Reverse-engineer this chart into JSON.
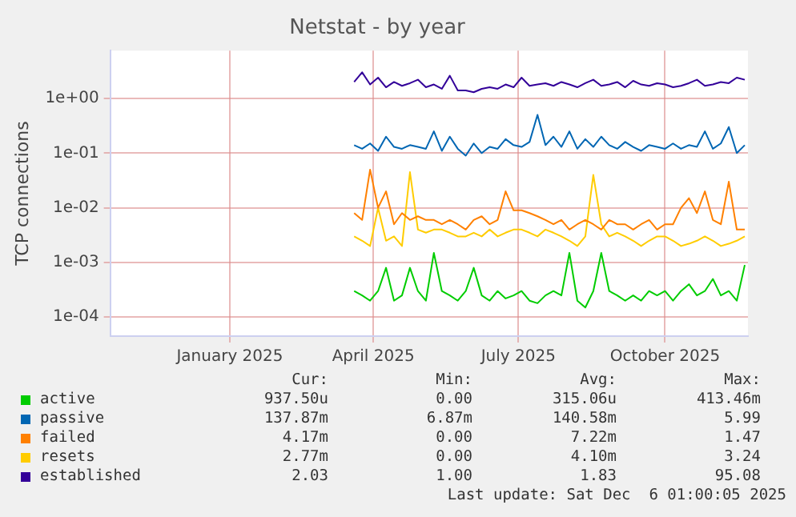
{
  "chart_data": {
    "type": "line",
    "title": "Netstat - by year",
    "ylabel": "TCP connections",
    "log": "y",
    "grid": true,
    "legend": "bottom",
    "marker": "none",
    "line_style": "solid",
    "xlim": [
      "2024-11-01",
      "2025-12-06"
    ],
    "xticks": [
      {
        "value": "2025-01-15",
        "label": "January 2025"
      },
      {
        "value": "2025-04-15",
        "label": "April 2025"
      },
      {
        "value": "2025-07-15",
        "label": "July 2025"
      },
      {
        "value": "2025-10-15",
        "label": "October 2025"
      }
    ],
    "ylim": [
      4.5e-05,
      7.5
    ],
    "yticks": [
      {
        "value": 0.0001,
        "label": "1e-04"
      },
      {
        "value": 0.001,
        "label": "1e-03"
      },
      {
        "value": 0.01,
        "label": "1e-02"
      },
      {
        "value": 0.1,
        "label": "1e-01"
      },
      {
        "value": 1,
        "label": "1e+00"
      }
    ],
    "x": [
      "2025-04-03",
      "2025-04-08",
      "2025-04-13",
      "2025-04-18",
      "2025-04-23",
      "2025-04-28",
      "2025-05-03",
      "2025-05-08",
      "2025-05-13",
      "2025-05-18",
      "2025-05-23",
      "2025-05-28",
      "2025-06-02",
      "2025-06-07",
      "2025-06-12",
      "2025-06-17",
      "2025-06-22",
      "2025-06-27",
      "2025-07-02",
      "2025-07-07",
      "2025-07-12",
      "2025-07-17",
      "2025-07-22",
      "2025-07-27",
      "2025-08-01",
      "2025-08-06",
      "2025-08-11",
      "2025-08-16",
      "2025-08-21",
      "2025-08-26",
      "2025-08-31",
      "2025-09-05",
      "2025-09-10",
      "2025-09-15",
      "2025-09-20",
      "2025-09-25",
      "2025-09-30",
      "2025-10-05",
      "2025-10-10",
      "2025-10-15",
      "2025-10-20",
      "2025-10-25",
      "2025-10-30",
      "2025-11-04",
      "2025-11-09",
      "2025-11-14",
      "2025-11-19",
      "2025-11-24",
      "2025-11-29",
      "2025-12-04"
    ],
    "series": [
      {
        "name": "active",
        "color": "#00cc00",
        "values": [
          0.0003,
          0.00025,
          0.0002,
          0.0003,
          0.0008,
          0.0002,
          0.00025,
          0.0008,
          0.0003,
          0.0002,
          0.0015,
          0.0003,
          0.00025,
          0.0002,
          0.0003,
          0.0008,
          0.00025,
          0.0002,
          0.0003,
          0.00022,
          0.00025,
          0.0003,
          0.0002,
          0.00018,
          0.00025,
          0.0003,
          0.00025,
          0.0015,
          0.0002,
          0.00015,
          0.0003,
          0.0015,
          0.0003,
          0.00025,
          0.0002,
          0.00025,
          0.0002,
          0.0003,
          0.00025,
          0.0003,
          0.0002,
          0.0003,
          0.0004,
          0.00025,
          0.0003,
          0.0005,
          0.00025,
          0.0003,
          0.0002,
          0.0009
        ]
      },
      {
        "name": "passive",
        "color": "#0066b3",
        "values": [
          0.14,
          0.12,
          0.15,
          0.11,
          0.2,
          0.13,
          0.12,
          0.14,
          0.13,
          0.12,
          0.25,
          0.11,
          0.2,
          0.12,
          0.09,
          0.15,
          0.1,
          0.13,
          0.12,
          0.18,
          0.14,
          0.13,
          0.16,
          0.5,
          0.14,
          0.2,
          0.13,
          0.25,
          0.12,
          0.18,
          0.13,
          0.2,
          0.14,
          0.12,
          0.16,
          0.13,
          0.11,
          0.14,
          0.13,
          0.12,
          0.15,
          0.12,
          0.14,
          0.13,
          0.25,
          0.12,
          0.15,
          0.3,
          0.1,
          0.14
        ]
      },
      {
        "name": "failed",
        "color": "#ff8000",
        "values": [
          0.008,
          0.006,
          0.05,
          0.01,
          0.02,
          0.005,
          0.008,
          0.006,
          0.007,
          0.006,
          0.006,
          0.005,
          0.006,
          0.005,
          0.004,
          0.006,
          0.007,
          0.005,
          0.006,
          0.02,
          0.009,
          0.009,
          0.008,
          0.007,
          0.006,
          0.005,
          0.006,
          0.004,
          0.005,
          0.006,
          0.005,
          0.004,
          0.006,
          0.005,
          0.005,
          0.004,
          0.005,
          0.006,
          0.004,
          0.005,
          0.005,
          0.01,
          0.015,
          0.008,
          0.02,
          0.006,
          0.005,
          0.03,
          0.004,
          0.004
        ]
      },
      {
        "name": "resets",
        "color": "#ffcc00",
        "values": [
          0.003,
          0.0025,
          0.002,
          0.01,
          0.0025,
          0.003,
          0.002,
          0.045,
          0.004,
          0.0035,
          0.004,
          0.004,
          0.0035,
          0.003,
          0.003,
          0.0035,
          0.003,
          0.004,
          0.003,
          0.0035,
          0.004,
          0.004,
          0.0035,
          0.003,
          0.004,
          0.0035,
          0.003,
          0.0025,
          0.002,
          0.003,
          0.04,
          0.005,
          0.003,
          0.0035,
          0.003,
          0.0025,
          0.002,
          0.0025,
          0.003,
          0.003,
          0.0025,
          0.002,
          0.0022,
          0.0025,
          0.003,
          0.0025,
          0.002,
          0.0022,
          0.0025,
          0.003
        ]
      },
      {
        "name": "established",
        "color": "#330099",
        "values": [
          2.0,
          3.0,
          1.8,
          2.4,
          1.6,
          2.0,
          1.7,
          1.9,
          2.2,
          1.6,
          1.8,
          1.5,
          2.6,
          1.4,
          1.4,
          1.3,
          1.5,
          1.6,
          1.5,
          1.8,
          1.6,
          2.4,
          1.7,
          1.8,
          1.9,
          1.7,
          2.0,
          1.8,
          1.6,
          1.9,
          2.2,
          1.7,
          1.8,
          2.0,
          1.6,
          2.1,
          1.8,
          1.7,
          1.9,
          1.8,
          1.6,
          1.7,
          1.9,
          2.2,
          1.7,
          1.8,
          2.0,
          1.9,
          2.4,
          2.2
        ]
      }
    ],
    "annotations": [
      "Cur:",
      "Min:",
      "Avg:",
      "Max:",
      "937.50u",
      "0.00",
      "315.06u",
      "413.46m",
      "137.87m",
      "6.87m",
      "140.58m",
      "5.99",
      "4.17m",
      "0.00",
      "7.22m",
      "1.47",
      "2.77m",
      "0.00",
      "4.10m",
      "3.24",
      "2.03",
      "1.00",
      "1.83",
      "95.08",
      "Last update: Sat Dec  6 01:00:05 2025"
    ]
  }
}
